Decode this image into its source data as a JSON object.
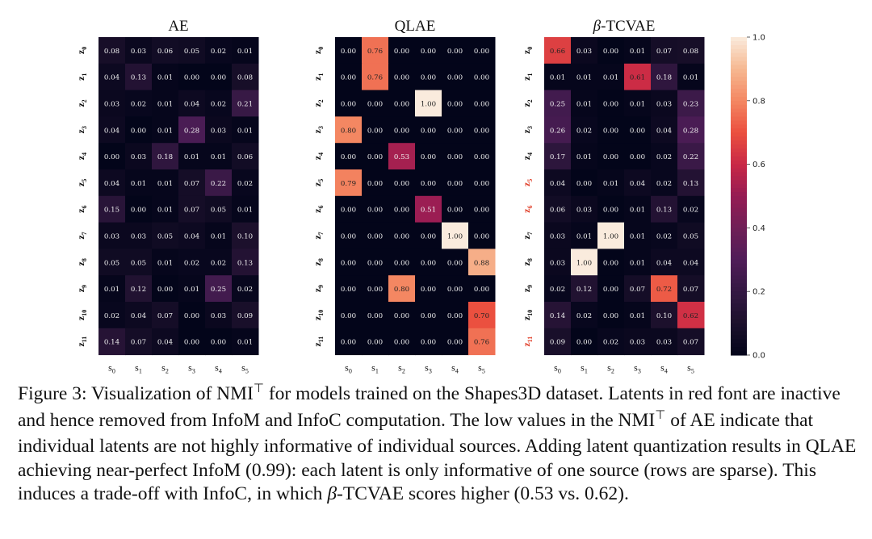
{
  "chart_data": {
    "type": "heatmap",
    "panels": [
      {
        "title": "AE",
        "row_labels": [
          "z0",
          "z1",
          "z2",
          "z3",
          "z4",
          "z5",
          "z6",
          "z7",
          "z8",
          "z9",
          "z10",
          "z11"
        ],
        "col_labels": [
          "s0",
          "s1",
          "s2",
          "s3",
          "s4",
          "s5"
        ],
        "inactive_rows": [],
        "values": [
          [
            0.08,
            0.03,
            0.06,
            0.05,
            0.02,
            0.01
          ],
          [
            0.04,
            0.13,
            0.01,
            0.0,
            0.0,
            0.08
          ],
          [
            0.03,
            0.02,
            0.01,
            0.04,
            0.02,
            0.21
          ],
          [
            0.04,
            0.0,
            0.01,
            0.28,
            0.03,
            0.01
          ],
          [
            0.0,
            0.03,
            0.18,
            0.01,
            0.01,
            0.06
          ],
          [
            0.04,
            0.01,
            0.01,
            0.07,
            0.22,
            0.02
          ],
          [
            0.15,
            0.0,
            0.01,
            0.07,
            0.05,
            0.01
          ],
          [
            0.03,
            0.03,
            0.05,
            0.04,
            0.01,
            0.1
          ],
          [
            0.05,
            0.05,
            0.01,
            0.02,
            0.02,
            0.13
          ],
          [
            0.01,
            0.12,
            0.0,
            0.01,
            0.25,
            0.02
          ],
          [
            0.02,
            0.04,
            0.07,
            0.0,
            0.03,
            0.09
          ],
          [
            0.14,
            0.07,
            0.04,
            0.0,
            0.0,
            0.01
          ]
        ]
      },
      {
        "title": "QLAE",
        "row_labels": [
          "z0",
          "z1",
          "z2",
          "z3",
          "z4",
          "z5",
          "z6",
          "z7",
          "z8",
          "z9",
          "z10",
          "z11"
        ],
        "col_labels": [
          "s0",
          "s1",
          "s2",
          "s3",
          "s4",
          "s5"
        ],
        "inactive_rows": [],
        "values": [
          [
            0.0,
            0.76,
            0.0,
            0.0,
            0.0,
            0.0
          ],
          [
            0.0,
            0.76,
            0.0,
            0.0,
            0.0,
            0.0
          ],
          [
            0.0,
            0.0,
            0.0,
            1.0,
            0.0,
            0.0
          ],
          [
            0.8,
            0.0,
            0.0,
            0.0,
            0.0,
            0.0
          ],
          [
            0.0,
            0.0,
            0.53,
            0.0,
            0.0,
            0.0
          ],
          [
            0.79,
            0.0,
            0.0,
            0.0,
            0.0,
            0.0
          ],
          [
            0.0,
            0.0,
            0.0,
            0.51,
            0.0,
            0.0
          ],
          [
            0.0,
            0.0,
            0.0,
            0.0,
            1.0,
            0.0
          ],
          [
            0.0,
            0.0,
            0.0,
            0.0,
            0.0,
            0.88
          ],
          [
            0.0,
            0.0,
            0.8,
            0.0,
            0.0,
            0.0
          ],
          [
            0.0,
            0.0,
            0.0,
            0.0,
            0.0,
            0.7
          ],
          [
            0.0,
            0.0,
            0.0,
            0.0,
            0.0,
            0.76
          ]
        ]
      },
      {
        "title": "β-TCVAE",
        "row_labels": [
          "z0",
          "z1",
          "z2",
          "z3",
          "z4",
          "z5",
          "z6",
          "z7",
          "z8",
          "z9",
          "z10",
          "z11"
        ],
        "col_labels": [
          "s0",
          "s1",
          "s2",
          "s3",
          "s4",
          "s5"
        ],
        "inactive_rows": [
          5,
          6,
          11
        ],
        "values": [
          [
            0.66,
            0.03,
            0.0,
            0.01,
            0.07,
            0.08
          ],
          [
            0.01,
            0.01,
            0.01,
            0.61,
            0.18,
            0.01
          ],
          [
            0.25,
            0.01,
            0.0,
            0.01,
            0.03,
            0.23
          ],
          [
            0.26,
            0.02,
            0.0,
            0.0,
            0.04,
            0.28
          ],
          [
            0.17,
            0.01,
            0.0,
            0.0,
            0.02,
            0.22
          ],
          [
            0.04,
            0.0,
            0.01,
            0.04,
            0.02,
            0.13
          ],
          [
            0.06,
            0.03,
            0.0,
            0.01,
            0.13,
            0.02
          ],
          [
            0.03,
            0.01,
            1.0,
            0.01,
            0.02,
            0.05
          ],
          [
            0.03,
            1.0,
            0.0,
            0.01,
            0.04,
            0.04
          ],
          [
            0.02,
            0.12,
            0.0,
            0.07,
            0.72,
            0.07
          ],
          [
            0.14,
            0.02,
            0.0,
            0.01,
            0.1,
            0.62
          ],
          [
            0.09,
            0.0,
            0.02,
            0.03,
            0.03,
            0.07
          ]
        ]
      }
    ],
    "colorbar": {
      "range": [
        0.0,
        1.0
      ],
      "ticks": [
        0.0,
        0.2,
        0.4,
        0.6,
        0.8,
        1.0
      ],
      "tick_labels": [
        "0.0",
        "0.2",
        "0.4",
        "0.6",
        "0.8",
        "1.0"
      ],
      "colormap": "rocket"
    },
    "inactive_label_color": "#e0402a"
  },
  "caption": {
    "part1": "Figure 3: Visualization of NMI",
    "sup1": "⊤",
    "part2": " for models trained on the Shapes3D dataset. Latents in red font are inactive and hence removed from InfoM and InfoC computation. The low values in the NMI",
    "sup2": "⊤",
    "part3": " of AE indicate that individual latents are not highly informative of individual sources. Adding latent quantization results in QLAE achieving near-perfect InfoM (0.99): each latent is only informative of one source (rows are sparse). This induces a trade-off with InfoC, in which ",
    "beta": "β",
    "part4": "-TCVAE scores higher (0.53 vs. 0.62)."
  }
}
